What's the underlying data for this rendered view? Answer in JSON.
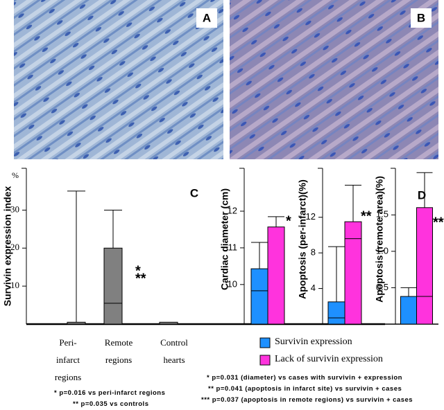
{
  "panels": [
    {
      "label": "A"
    },
    {
      "label": "B"
    }
  ],
  "chart_data": [
    {
      "type": "bar",
      "panel_label": "C",
      "y_label": "Survivin expression index",
      "y_unit": "%",
      "categories": [
        "Peri-infarct regions",
        "Remote regions",
        "Control hearts"
      ],
      "values": [
        0.5,
        20,
        0.5
      ],
      "error_high": [
        35,
        30,
        null
      ],
      "median": [
        null,
        5.5,
        null
      ],
      "color": "#808080",
      "ylim": [
        0,
        41
      ],
      "yticks": [
        10,
        20,
        30
      ],
      "annotations": [
        "*",
        "**"
      ],
      "notes": [
        "* p=0.016 vs peri-infarct regions",
        "** p=0.035 vs controls"
      ]
    },
    {
      "type": "bar",
      "panel_label": "D",
      "y_label": "Cardiac diameter (cm)",
      "series": [
        {
          "name": "Survivin expression",
          "color": "#1e90ff",
          "values": [
            10.43
          ],
          "error_high": [
            11.15
          ],
          "median": [
            9.83
          ]
        },
        {
          "name": "Lack of survivin expression",
          "color": "#ff33dd",
          "values": [
            11.57
          ],
          "error_high": [
            11.85
          ],
          "median": [
            null
          ]
        }
      ],
      "ylim": [
        8.92,
        13.17
      ],
      "yticks": [
        10,
        11,
        12
      ],
      "annotations": [
        "*"
      ],
      "notes": [
        "* p=0.031 (diameter) vs cases with survivin + expression",
        "** p=0.041 (apoptosis in infarct site) vs survivin + cases",
        "*** p=0.037 (apoptosis in remote regions) vs survivin + cases"
      ]
    },
    {
      "type": "bar",
      "y_label": "Apoptosis (per-infarct)(%)",
      "series": [
        {
          "color": "#1e90ff",
          "values": [
            2.5
          ],
          "error_high": [
            8.7
          ],
          "median": [
            0.7
          ]
        },
        {
          "color": "#ff33dd",
          "values": [
            11.5
          ],
          "error_high": [
            15.6
          ],
          "median": [
            9.6
          ]
        }
      ],
      "ylim": [
        0,
        17.5
      ],
      "yticks": [
        4,
        8,
        12
      ],
      "annotations": [
        "**"
      ]
    },
    {
      "type": "bar",
      "y_label": "Apoptosis (remote area)(%)",
      "series": [
        {
          "color": "#1e90ff",
          "values": [
            0.38
          ],
          "error_high": [
            0.5
          ],
          "median": [
            null
          ]
        },
        {
          "color": "#ff33dd",
          "values": [
            1.6
          ],
          "error_high": [
            2.08
          ],
          "median": [
            0.38
          ]
        }
      ],
      "ylim": [
        0,
        2.14
      ],
      "yticks": [
        0.5,
        {
          "value": 1,
          "label": "1.0"
        },
        1.5
      ],
      "annotations": [
        "***"
      ]
    }
  ]
}
